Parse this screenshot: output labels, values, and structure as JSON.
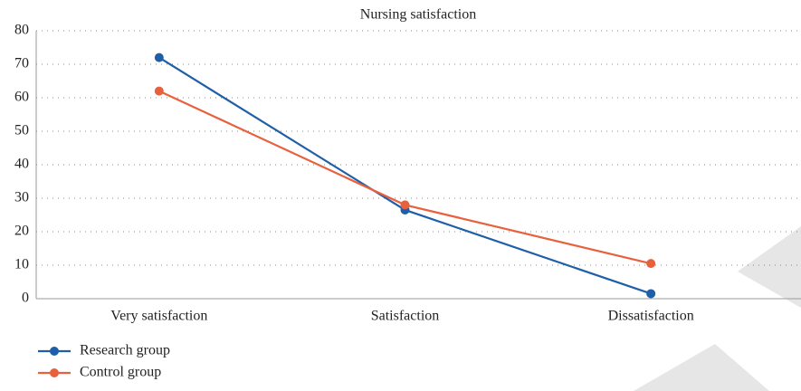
{
  "chart_data": {
    "type": "line",
    "title": "Nursing satisfaction",
    "categories": [
      "Very satisfaction",
      "Satisfaction",
      "Dissatisfaction"
    ],
    "series": [
      {
        "name": "Research group",
        "color": "#1f5fa8",
        "values": [
          72,
          26.5,
          1.5
        ]
      },
      {
        "name": "Control group",
        "color": "#e8603c",
        "values": [
          62,
          28,
          10.5
        ]
      }
    ],
    "ylim": [
      0,
      80
    ],
    "yticks": [
      0,
      10,
      20,
      30,
      40,
      50,
      60,
      70,
      80
    ],
    "grid": true,
    "legend": "bottom-left"
  }
}
